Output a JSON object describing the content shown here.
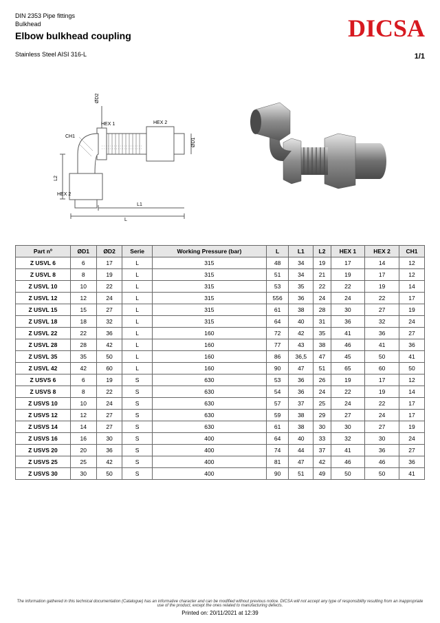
{
  "header": {
    "standard": "DIN 2353 Pipe fittings",
    "category": "Bulkhead",
    "title": "Elbow bulkhead coupling",
    "material": "Stainless Steel AISI 316-L",
    "logo_text": "DICSA",
    "logo_color": "#d71920",
    "page": "1/1"
  },
  "table": {
    "columns": [
      "Part nº",
      "ØD1",
      "ØD2",
      "Serie",
      "Working Pressure (bar)",
      "L",
      "L1",
      "L2",
      "HEX 1",
      "HEX 2",
      "CH1"
    ],
    "rows": [
      [
        "Z USVL 6",
        "6",
        "17",
        "L",
        "315",
        "48",
        "34",
        "19",
        "17",
        "14",
        "12"
      ],
      [
        "Z USVL 8",
        "8",
        "19",
        "L",
        "315",
        "51",
        "34",
        "21",
        "19",
        "17",
        "12"
      ],
      [
        "Z USVL 10",
        "10",
        "22",
        "L",
        "315",
        "53",
        "35",
        "22",
        "22",
        "19",
        "14"
      ],
      [
        "Z USVL 12",
        "12",
        "24",
        "L",
        "315",
        "556",
        "36",
        "24",
        "24",
        "22",
        "17"
      ],
      [
        "Z USVL 15",
        "15",
        "27",
        "L",
        "315",
        "61",
        "38",
        "28",
        "30",
        "27",
        "19"
      ],
      [
        "Z USVL 18",
        "18",
        "32",
        "L",
        "315",
        "64",
        "40",
        "31",
        "36",
        "32",
        "24"
      ],
      [
        "Z USVL 22",
        "22",
        "36",
        "L",
        "160",
        "72",
        "42",
        "35",
        "41",
        "36",
        "27"
      ],
      [
        "Z USVL 28",
        "28",
        "42",
        "L",
        "160",
        "77",
        "43",
        "38",
        "46",
        "41",
        "36"
      ],
      [
        "Z USVL 35",
        "35",
        "50",
        "L",
        "160",
        "86",
        "36,5",
        "47",
        "45",
        "50",
        "41"
      ],
      [
        "Z USVL 42",
        "42",
        "60",
        "L",
        "160",
        "90",
        "47",
        "51",
        "65",
        "60",
        "50"
      ],
      [
        "Z USVS 6",
        "6",
        "19",
        "S",
        "630",
        "53",
        "36",
        "26",
        "19",
        "17",
        "12"
      ],
      [
        "Z USVS 8",
        "8",
        "22",
        "S",
        "630",
        "54",
        "36",
        "24",
        "22",
        "19",
        "14"
      ],
      [
        "Z USVS 10",
        "10",
        "24",
        "S",
        "630",
        "57",
        "37",
        "25",
        "24",
        "22",
        "17"
      ],
      [
        "Z USVS 12",
        "12",
        "27",
        "S",
        "630",
        "59",
        "38",
        "29",
        "27",
        "24",
        "17"
      ],
      [
        "Z USVS 14",
        "14",
        "27",
        "S",
        "630",
        "61",
        "38",
        "30",
        "30",
        "27",
        "19"
      ],
      [
        "Z USVS 16",
        "16",
        "30",
        "S",
        "400",
        "64",
        "40",
        "33",
        "32",
        "30",
        "24"
      ],
      [
        "Z USVS 20",
        "20",
        "36",
        "S",
        "400",
        "74",
        "44",
        "37",
        "41",
        "36",
        "27"
      ],
      [
        "Z USVS 25",
        "25",
        "42",
        "S",
        "400",
        "81",
        "47",
        "42",
        "46",
        "46",
        "36"
      ],
      [
        "Z USVS 30",
        "30",
        "50",
        "S",
        "400",
        "90",
        "51",
        "49",
        "50",
        "50",
        "41"
      ]
    ],
    "header_bg": "#e6e6e6",
    "border_color": "#666666"
  },
  "drawing": {
    "labels": [
      "ØD2",
      "ØD1",
      "HEX 1",
      "HEX 2",
      "CH1",
      "L",
      "L1",
      "L2",
      "HEX 2"
    ],
    "stroke": "#5a5a5a",
    "fill_light": "#d9d9d9",
    "fill_mid": "#a8a8a8",
    "fill_dark": "#6e6e6e"
  },
  "footer": {
    "disclaimer": "The information gathered in this technical documentation (Catalogue) has an informative character and can be modified without previous notice. DICSA will not accept any type of responsibility resulting from an inappropriate use of the product, except the ones related to manufacturing defects.",
    "printed": "Printed on: 20/11/2021 at 12:39"
  }
}
